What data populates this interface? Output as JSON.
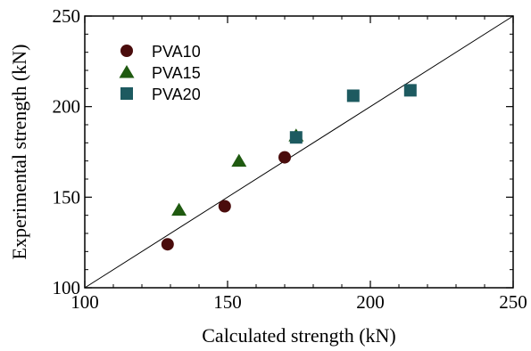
{
  "chart_data": {
    "type": "scatter",
    "xlabel": "Calculated strength (kN)",
    "ylabel": "Experimental strength (kN)",
    "xlim": [
      100,
      250
    ],
    "ylim": [
      100,
      250
    ],
    "x_ticks": [
      100,
      150,
      200,
      250
    ],
    "y_ticks": [
      100,
      150,
      200,
      250
    ],
    "x_tick_labels": [
      "100",
      "150",
      "200",
      "250"
    ],
    "y_tick_labels": [
      "100",
      "150",
      "200",
      "250"
    ],
    "grid": false,
    "legend_position": "top-left",
    "reference_line": {
      "type": "y=x",
      "from": [
        100,
        100
      ],
      "to": [
        250,
        250
      ]
    },
    "series": [
      {
        "name": "PVA10",
        "marker": "circle",
        "color": "#4a0c0c",
        "points": [
          {
            "x": 129,
            "y": 124
          },
          {
            "x": 149,
            "y": 145
          },
          {
            "x": 170,
            "y": 172
          }
        ]
      },
      {
        "name": "PVA15",
        "marker": "triangle",
        "color": "#1f5a10",
        "points": [
          {
            "x": 133,
            "y": 143
          },
          {
            "x": 154,
            "y": 170
          },
          {
            "x": 174,
            "y": 184
          }
        ]
      },
      {
        "name": "PVA20",
        "marker": "square",
        "color": "#1d5a60",
        "points": [
          {
            "x": 174,
            "y": 183
          },
          {
            "x": 194,
            "y": 206
          },
          {
            "x": 214,
            "y": 209
          }
        ]
      }
    ]
  }
}
